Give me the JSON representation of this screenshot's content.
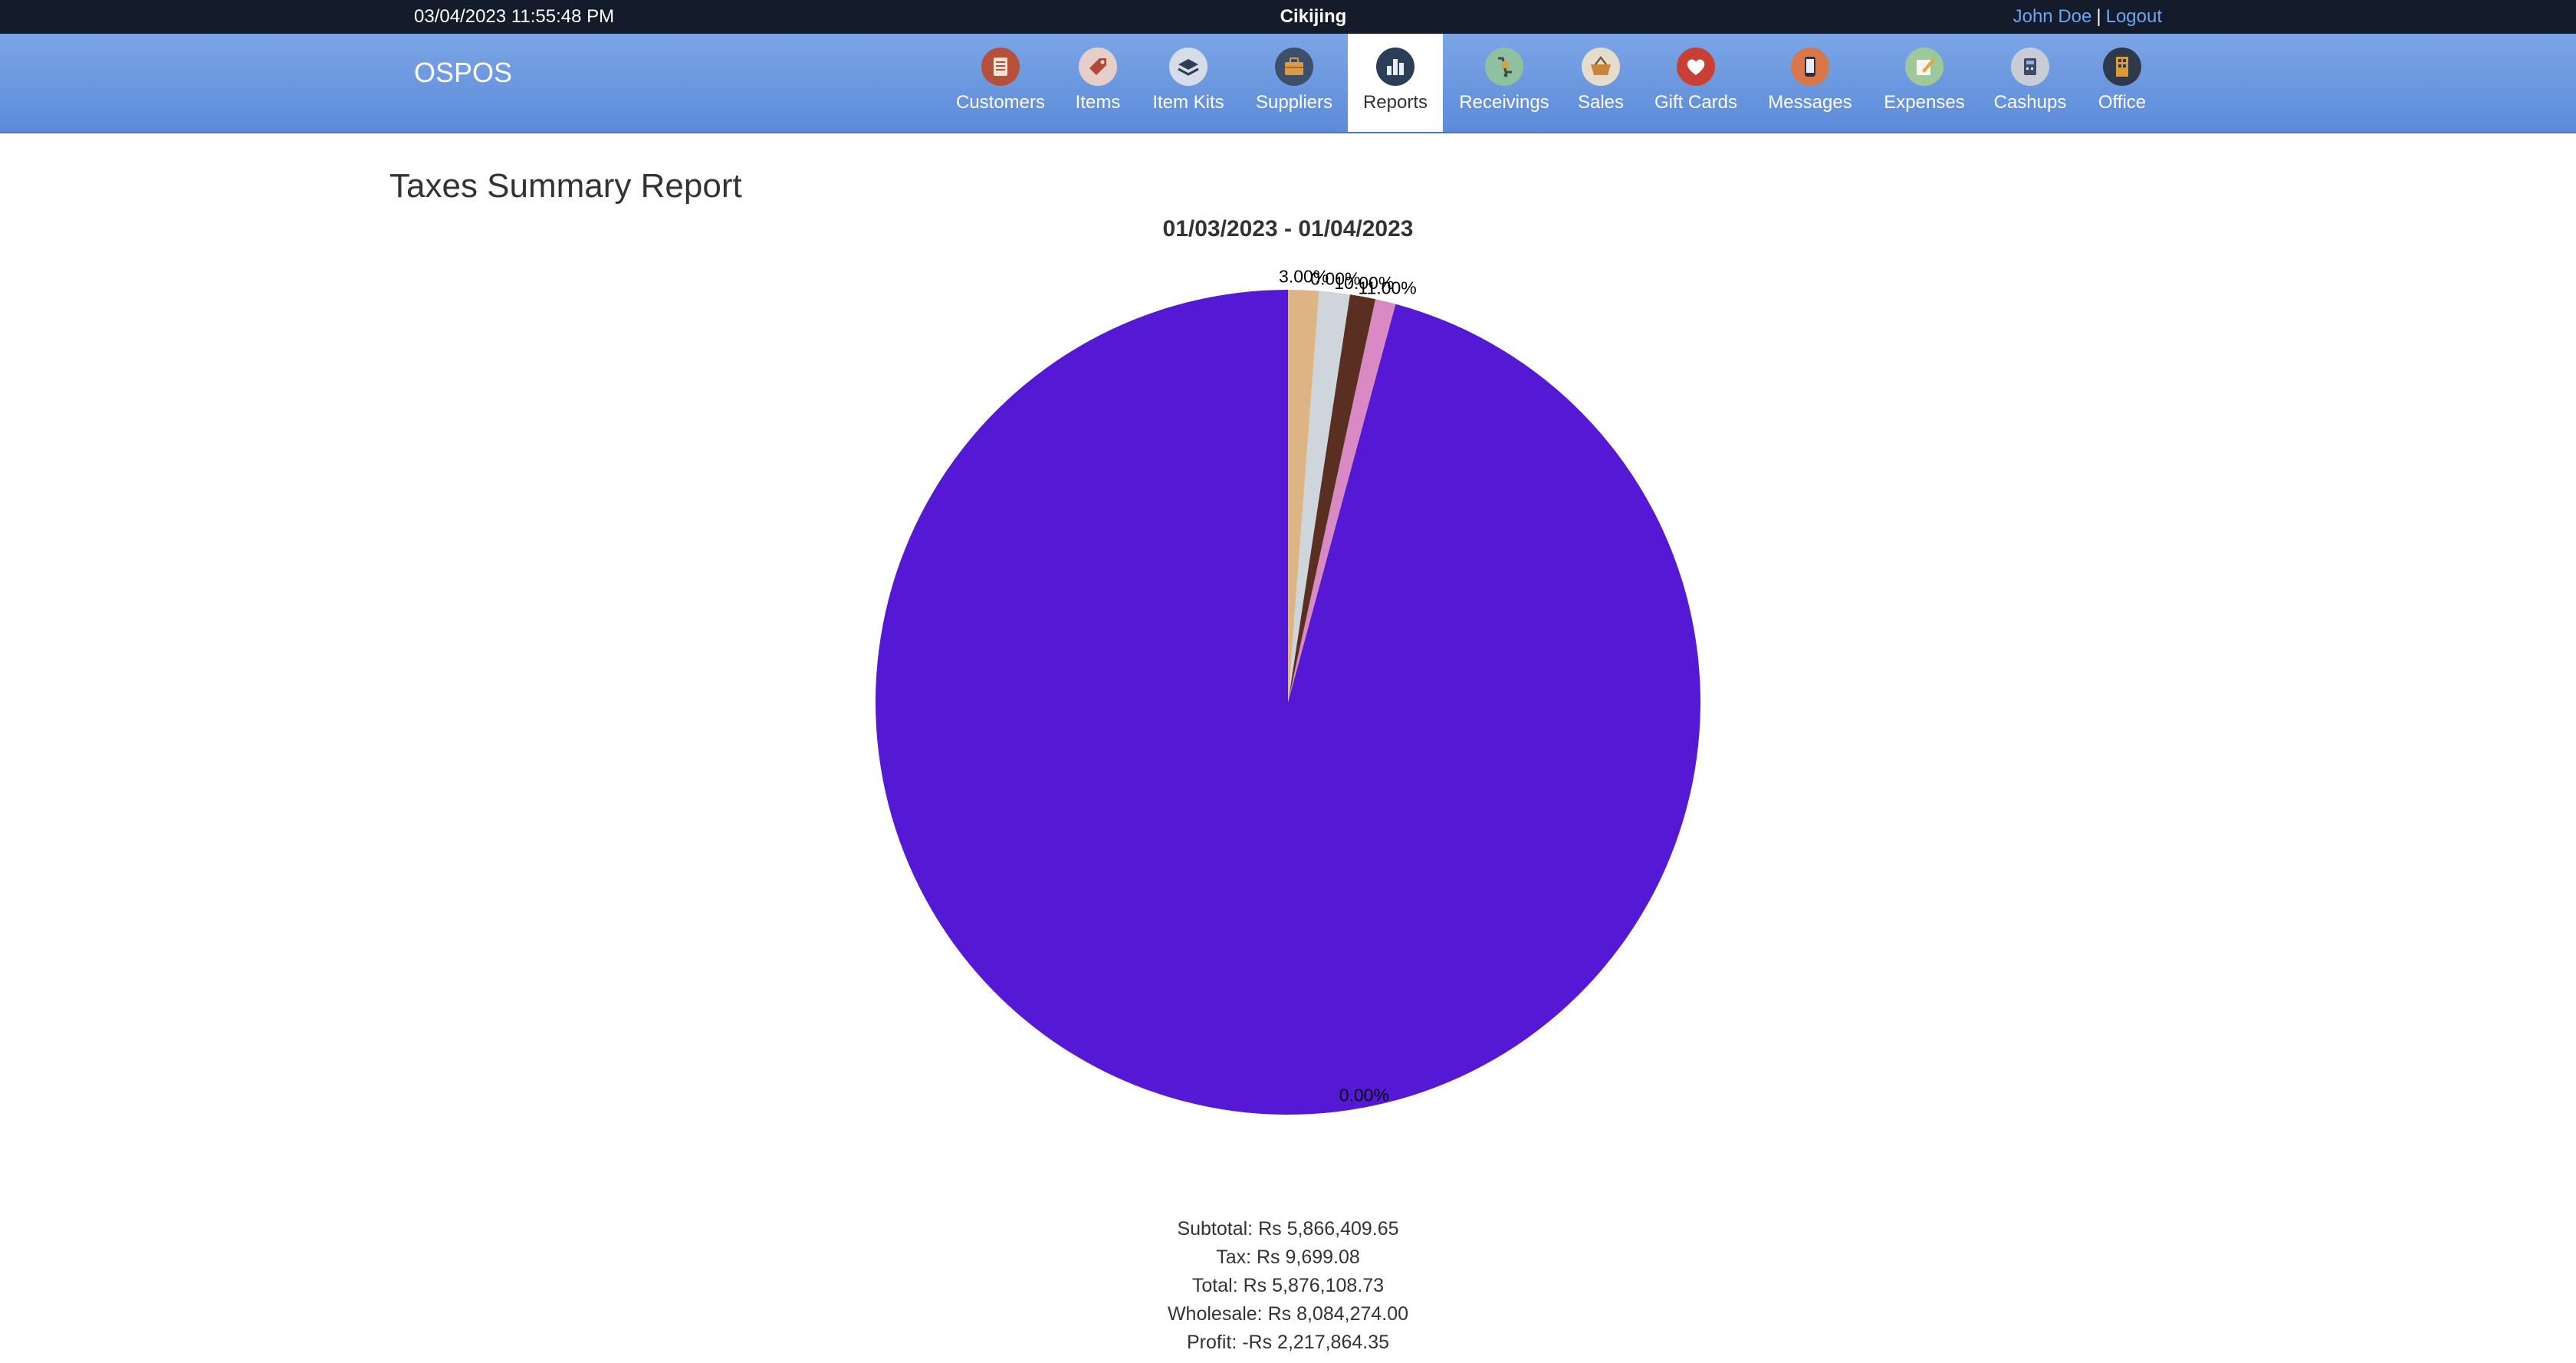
{
  "topbar": {
    "datetime": "03/04/2023 11:55:48 PM",
    "store_name": "Cikijing",
    "user_name": "John Doe",
    "separator": "|",
    "logout": "Logout"
  },
  "nav": {
    "brand": "OSPOS",
    "items": [
      {
        "label": "Customers",
        "icon": "customers-icon",
        "color": "#b5503a"
      },
      {
        "label": "Items",
        "icon": "items-icon",
        "color": "#d9b5ad"
      },
      {
        "label": "Item Kits",
        "icon": "item-kits-icon",
        "color": "#d6dde8"
      },
      {
        "label": "Suppliers",
        "icon": "suppliers-icon",
        "color": "#3e4f6a"
      },
      {
        "label": "Reports",
        "icon": "reports-icon",
        "color": "#2c3e57"
      },
      {
        "label": "Receivings",
        "icon": "receivings-icon",
        "color": "#8fc0a0"
      },
      {
        "label": "Sales",
        "icon": "sales-icon",
        "color": "#e6dccc"
      },
      {
        "label": "Gift Cards",
        "icon": "gift-cards-icon",
        "color": "#c84034"
      },
      {
        "label": "Messages",
        "icon": "messages-icon",
        "color": "#d8784a"
      },
      {
        "label": "Expenses",
        "icon": "expenses-icon",
        "color": "#9fc89a"
      },
      {
        "label": "Cashups",
        "icon": "cashups-icon",
        "color": "#c8ccd6"
      },
      {
        "label": "Office",
        "icon": "office-icon",
        "color": "#2e3a4c"
      }
    ],
    "active": "Reports"
  },
  "page": {
    "title": "Taxes Summary Report"
  },
  "chart_data": {
    "type": "pie",
    "title": "01/03/2023 - 01/04/2023",
    "slices": [
      {
        "value": 95.8,
        "label": "0.00%",
        "color": "#5518d4"
      },
      {
        "value": 0.8,
        "label": "11.00%",
        "color": "#d98ac5"
      },
      {
        "value": 1.0,
        "label": "10.00%",
        "color": "#5a2f22"
      },
      {
        "value": 1.2,
        "label": "0.00%",
        "color": "#cfd5dc"
      },
      {
        "value": 1.2,
        "label": "3.00%",
        "color": "#ddb585"
      }
    ]
  },
  "summary": {
    "subtotal": "Subtotal: Rs 5,866,409.65",
    "tax": "Tax: Rs 9,699.08",
    "total": "Total: Rs 5,876,108.73",
    "wholesale": "Wholesale: Rs 8,084,274.00",
    "profit": "Profit: -Rs 2,217,864.35"
  }
}
